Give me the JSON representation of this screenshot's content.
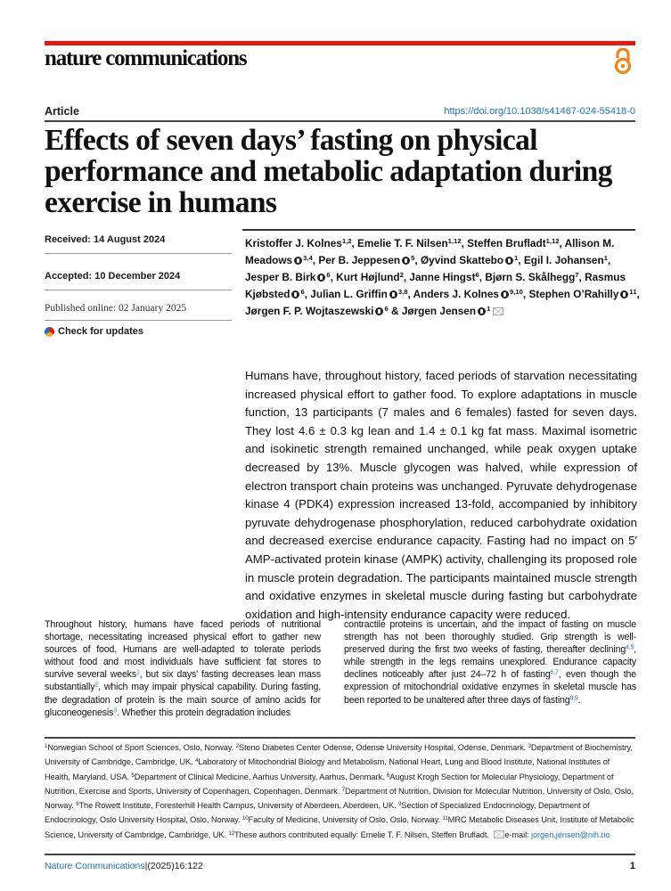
{
  "header": {
    "journal": "nature communications",
    "article_type": "Article",
    "doi": "https://doi.org/10.1038/s41467-024-55418-0",
    "open_access_icon": "open-access-icon",
    "accent": "#e8170d"
  },
  "title": "Effects of seven days’ fasting on physical performance and metabolic adaptation during exercise in humans",
  "dates": {
    "received": "Received: 14 August 2024",
    "accepted": "Accepted: 10 December 2024",
    "published": "Published online: 02 January 2025",
    "check": "Check for updates"
  },
  "authors": [
    {
      "name": "Kristoffer J. Kolnes",
      "sup": "1,2",
      "orcid": false
    },
    {
      "name": "Emelie T. F. Nilsen",
      "sup": "1,12",
      "orcid": false
    },
    {
      "name": "Steffen Brufladt",
      "sup": "1,12",
      "orcid": false
    },
    {
      "name": "Allison M. Meadows",
      "sup": "3,4",
      "orcid": true
    },
    {
      "name": "Per B. Jeppesen",
      "sup": "5",
      "orcid": true
    },
    {
      "name": "Øyvind Skattebo",
      "sup": "1",
      "orcid": true
    },
    {
      "name": "Egil I. Johansen",
      "sup": "1",
      "orcid": false
    },
    {
      "name": "Jesper B. Birk",
      "sup": "6",
      "orcid": true
    },
    {
      "name": "Kurt Højlund",
      "sup": "2",
      "orcid": false
    },
    {
      "name": "Janne Hingst",
      "sup": "6",
      "orcid": false
    },
    {
      "name": "Bjørn S. Skålhegg",
      "sup": "7",
      "orcid": false
    },
    {
      "name": "Rasmus Kjøbsted",
      "sup": "6",
      "orcid": true
    },
    {
      "name": "Julian L. Griffin",
      "sup": "3,8",
      "orcid": true
    },
    {
      "name": "Anders J. Kolnes",
      "sup": "9,10",
      "orcid": true
    },
    {
      "name": "Stephen O’Rahilly",
      "sup": "11",
      "orcid": true
    },
    {
      "name": "Jørgen F. P. Wojtaszewski",
      "sup": "6",
      "orcid": true
    },
    {
      "name": "Jørgen Jensen",
      "sup": "1",
      "orcid": true,
      "mail": true
    }
  ],
  "abstract": "Humans have, throughout history, faced periods of starvation necessitating increased physical effort to gather food. To explore adaptations in muscle function, 13 participants (7 males and 6 females) fasted for seven days. They lost 4.6 ± 0.3 kg lean and 1.4 ± 0.1 kg fat mass. Maximal isometric and isokinetic strength remained unchanged, while peak oxygen uptake decreased by 13%. Muscle glycogen was halved, while expression of electron transport chain proteins was unchanged. Pyruvate dehydrogenase kinase 4 (PDK4) expression increased 13-fold, accompanied by inhibitory pyruvate dehydrogenase phosphorylation, reduced carbohydrate oxidation and decreased exercise endurance capacity. Fasting had no impact on 5′ AMP-activated protein kinase (AMPK) activity, challenging its proposed role in muscle protein degradation. The participants maintained muscle strength and oxidative enzymes in skeletal muscle during fasting but carbohydrate oxidation and high-intensity endurance capacity were reduced.",
  "body": {
    "col1": [
      {
        "t": "Throughout history, humans have faced periods of nutritional shortage, necessitating increased physical effort to gather new sources of food. Humans are well-adapted to tolerate periods without food and most individuals have sufficient fat stores to survive several weeks"
      },
      {
        "r": "1"
      },
      {
        "t": ", but six days’ fasting decreases lean mass substantially"
      },
      {
        "r": "2"
      },
      {
        "t": ", which may impair physical capability. During fasting, the degradation of protein is the main source of amino acids for gluconeogenesis"
      },
      {
        "r": "3"
      },
      {
        "t": ". Whether this protein degradation includes"
      }
    ],
    "col2": [
      {
        "t": "contractile proteins is uncertain, and the impact of fasting on muscle strength has not been thoroughly studied. Grip strength is well-preserved during the first two weeks of fasting, thereafter declining"
      },
      {
        "r": "4,5"
      },
      {
        "t": ", while strength in the legs remains unexplored. Endurance capacity declines noticeably after just 24–72 h of fasting"
      },
      {
        "r": "6,7"
      },
      {
        "t": ", even though the expression of mitochondrial oxidative enzymes in skeletal muscle has been reported to be unaltered after three days of fasting"
      },
      {
        "r": "8,9"
      },
      {
        "t": "."
      }
    ]
  },
  "affiliations": [
    {
      "n": "1",
      "t": "Norwegian School of Sport Sciences, Oslo, Norway. "
    },
    {
      "n": "2",
      "t": "Steno Diabetes Center Odense, Odense University Hospital, Odense, Denmark. "
    },
    {
      "n": "3",
      "t": "Department of Biochemistry, University of Cambridge, Cambridge, UK. "
    },
    {
      "n": "4",
      "t": "Laboratory of Mitochondrial Biology and Metabolism, National Heart, Lung and Blood Institute, National Institutes of Health, Maryland, USA. "
    },
    {
      "n": "5",
      "t": "Department of Clinical Medicine, Aarhus University, Aarhus, Denmark. "
    },
    {
      "n": "6",
      "t": "August Krogh Section for Molecular Physiology, Department of Nutrition, Exercise and Sports, University of Copenhagen, Copenhagen, Denmark. "
    },
    {
      "n": "7",
      "t": "Department of Nutrition, Division for Molecular Nutrition, University of Oslo, Oslo, Norway. "
    },
    {
      "n": "8",
      "t": "The Rowett Institute, Foresterhill Health Campus, University of Aberdeen, Aberdeen, UK. "
    },
    {
      "n": "9",
      "t": "Section of Specialized Endocrinology, Department of Endocrinology, Oslo University Hospital, Oslo, Norway. "
    },
    {
      "n": "10",
      "t": "Faculty of Medicine, University of Oslo, Oslo, Norway. "
    },
    {
      "n": "11",
      "t": "MRC Metabolic Diseases Unit, Institute of Metabolic Science, University of Cambridge, Cambridge, UK. "
    },
    {
      "n": "12",
      "t": "These authors contributed equally: Emelie T. F. Nilsen, Steffen Brufladt. "
    }
  ],
  "contact": {
    "label": "e-mail: ",
    "email": "jorgen.jensen@nih.no"
  },
  "footer": {
    "journal": "Nature Communications",
    "citation": "|(2025)16:122",
    "page": "1"
  }
}
